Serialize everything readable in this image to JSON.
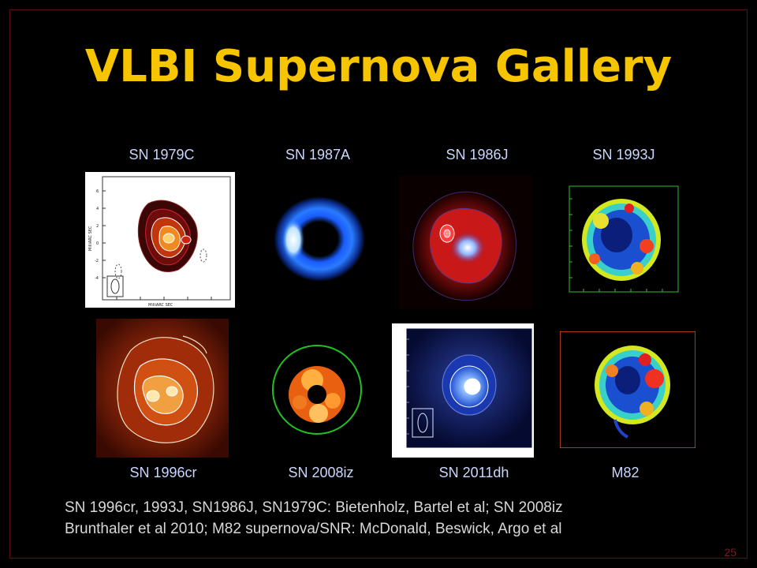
{
  "slide": {
    "title": "VLBI Supernova Gallery",
    "page_number": "25"
  },
  "top_labels": [
    "SN 1979C",
    "SN 1987A",
    "SN 1986J",
    "SN 1993J"
  ],
  "bottom_labels": [
    "SN 1996cr",
    "SN 2008iz",
    "SN 2011dh",
    "M82"
  ],
  "caption": {
    "line1": "SN 1996cr, 1993J, SN1986J, SN1979C: Bietenholz, Bartel et al; SN 2008iz",
    "line2": "Brunthaler et al 2010; M82 supernova/SNR: McDonald, Beswick, Argo et al"
  },
  "colors": {
    "title": "#f7c400",
    "labels": "#c9d6ff",
    "caption": "#d8d8d8",
    "page_number": "#7a1c1c"
  }
}
